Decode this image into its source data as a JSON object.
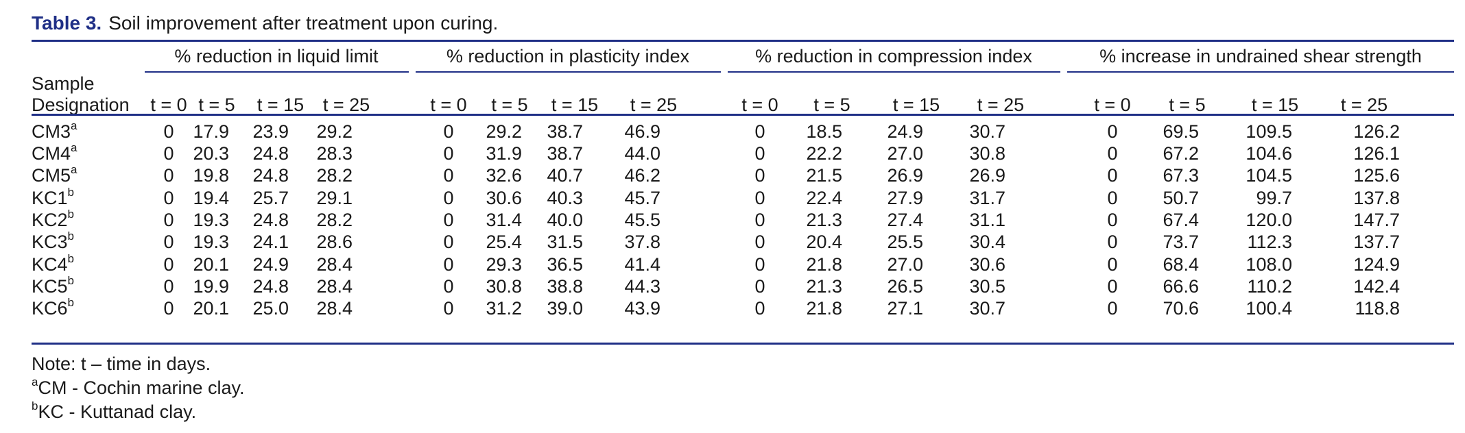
{
  "caption": {
    "label": "Table 3.",
    "text": "Soil improvement after treatment upon curing."
  },
  "header": {
    "sample_line1": "Sample",
    "sample_line2": "Designation",
    "groups": [
      "% reduction in liquid limit",
      "% reduction in plasticity index",
      "% reduction in compression index",
      "% increase in undrained shear strength"
    ],
    "time_labels": [
      "t = 0",
      "t = 5",
      "t = 15",
      "t = 25"
    ]
  },
  "rows": [
    {
      "name": "CM3",
      "sup": "a",
      "values": [
        "0",
        "17.9",
        "23.9",
        "29.2",
        "0",
        "29.2",
        "38.7",
        "46.9",
        "0",
        "18.5",
        "24.9",
        "30.7",
        "0",
        "69.5",
        "109.5",
        "126.2"
      ]
    },
    {
      "name": "CM4",
      "sup": "a",
      "values": [
        "0",
        "20.3",
        "24.8",
        "28.3",
        "0",
        "31.9",
        "38.7",
        "44.0",
        "0",
        "22.2",
        "27.0",
        "30.8",
        "0",
        "67.2",
        "104.6",
        "126.1"
      ]
    },
    {
      "name": "CM5",
      "sup": "a",
      "values": [
        "0",
        "19.8",
        "24.8",
        "28.2",
        "0",
        "32.6",
        "40.7",
        "46.2",
        "0",
        "21.5",
        "26.9",
        "26.9",
        "0",
        "67.3",
        "104.5",
        "125.6"
      ]
    },
    {
      "name": "KC1",
      "sup": "b",
      "values": [
        "0",
        "19.4",
        "25.7",
        "29.1",
        "0",
        "30.6",
        "40.3",
        "45.7",
        "0",
        "22.4",
        "27.9",
        "31.7",
        "0",
        "50.7",
        "99.7",
        "137.8"
      ]
    },
    {
      "name": "KC2",
      "sup": "b",
      "values": [
        "0",
        "19.3",
        "24.8",
        "28.2",
        "0",
        "31.4",
        "40.0",
        "45.5",
        "0",
        "21.3",
        "27.4",
        "31.1",
        "0",
        "67.4",
        "120.0",
        "147.7"
      ]
    },
    {
      "name": "KC3",
      "sup": "b",
      "values": [
        "0",
        "19.3",
        "24.1",
        "28.6",
        "0",
        "25.4",
        "31.5",
        "37.8",
        "0",
        "20.4",
        "25.5",
        "30.4",
        "0",
        "73.7",
        "112.3",
        "137.7"
      ]
    },
    {
      "name": "KC4",
      "sup": "b",
      "values": [
        "0",
        "20.1",
        "24.9",
        "28.4",
        "0",
        "29.3",
        "36.5",
        "41.4",
        "0",
        "21.8",
        "27.0",
        "30.6",
        "0",
        "68.4",
        "108.0",
        "124.9"
      ]
    },
    {
      "name": "KC5",
      "sup": "b",
      "values": [
        "0",
        "19.9",
        "24.8",
        "28.4",
        "0",
        "30.8",
        "38.8",
        "44.3",
        "0",
        "21.3",
        "26.5",
        "30.5",
        "0",
        "66.6",
        "110.2",
        "142.4"
      ]
    },
    {
      "name": "KC6",
      "sup": "b",
      "values": [
        "0",
        "20.1",
        "25.0",
        "28.4",
        "0",
        "31.2",
        "39.0",
        "43.9",
        "0",
        "21.8",
        "27.1",
        "30.7",
        "0",
        "70.6",
        "100.4",
        "118.8"
      ]
    }
  ],
  "notes": {
    "note": "Note: t – time in days.",
    "fn_a_mark": "a",
    "fn_a_text": "CM - Cochin marine clay.",
    "fn_b_mark": "b",
    "fn_b_text": "KC - Kuttanad clay."
  },
  "colors": {
    "accent": "#1f2f86",
    "text": "#1a1a1a"
  }
}
